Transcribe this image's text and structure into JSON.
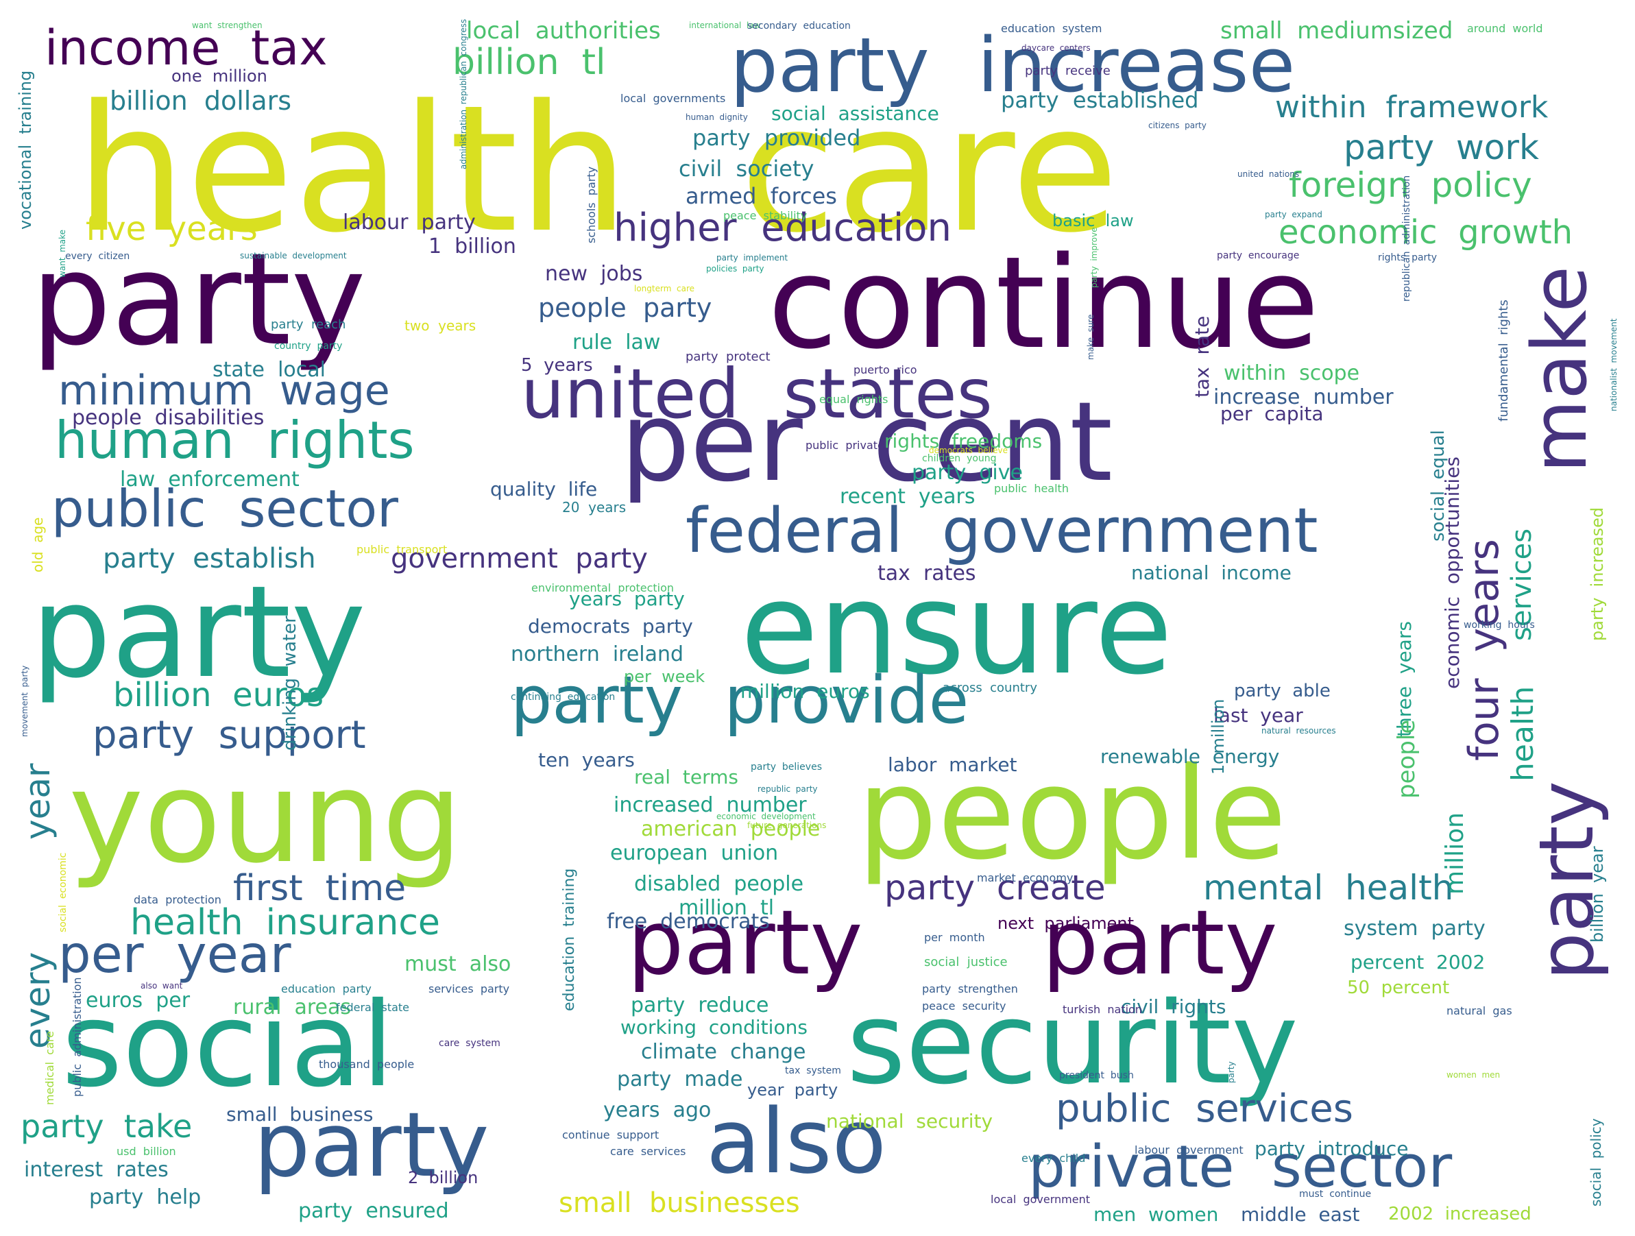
{
  "palette": {
    "c1": "#440154",
    "c2": "#46337e",
    "c3": "#365c8d",
    "c4": "#277f8e",
    "c5": "#1fa187",
    "c6": "#4ac16d",
    "c7": "#a0da39",
    "c8": "#d9e021"
  },
  "words": [
    {
      "text": "health  care",
      "color": "c8"
    },
    {
      "text": "party",
      "color": "c1"
    },
    {
      "text": "continue",
      "color": "c1"
    },
    {
      "text": "party",
      "color": "c5"
    },
    {
      "text": "ensure",
      "color": "c5"
    },
    {
      "text": "young",
      "color": "c7"
    },
    {
      "text": "people",
      "color": "c7"
    },
    {
      "text": "social",
      "color": "c5"
    },
    {
      "text": "security",
      "color": "c5"
    },
    {
      "text": "per  cent",
      "color": "c2"
    },
    {
      "text": "party",
      "color": "c3"
    },
    {
      "text": "also",
      "color": "c3"
    },
    {
      "text": "party",
      "color": "c1"
    },
    {
      "text": "party",
      "color": "c1"
    },
    {
      "text": "united  states",
      "color": "c2"
    },
    {
      "text": "party  increase",
      "color": "c3"
    },
    {
      "text": "make",
      "color": "c2"
    },
    {
      "text": "party",
      "color": "c2"
    },
    {
      "text": "party  provide",
      "color": "c4"
    },
    {
      "text": "federal  government",
      "color": "c3"
    },
    {
      "text": "private  sector",
      "color": "c3"
    },
    {
      "text": "income  tax",
      "color": "c1"
    },
    {
      "text": "human  rights",
      "color": "c5"
    },
    {
      "text": "public  sector",
      "color": "c3"
    },
    {
      "text": "minimum  wage",
      "color": "c3"
    },
    {
      "text": "per  year",
      "color": "c3"
    },
    {
      "text": "billion  tl",
      "color": "c6"
    },
    {
      "text": "higher  education",
      "color": "c2"
    },
    {
      "text": "four  years",
      "color": "c2"
    },
    {
      "text": "public  services",
      "color": "c3"
    },
    {
      "text": "party  support",
      "color": "c3"
    },
    {
      "text": "first  time",
      "color": "c3"
    },
    {
      "text": "health  insurance",
      "color": "c5"
    },
    {
      "text": "party  create",
      "color": "c2"
    },
    {
      "text": "mental  health",
      "color": "c4"
    },
    {
      "text": "billion  euros",
      "color": "c5"
    },
    {
      "text": "party  work",
      "color": "c4"
    },
    {
      "text": "foreign  policy",
      "color": "c6"
    },
    {
      "text": "economic  growth",
      "color": "c6"
    },
    {
      "text": "within  framework",
      "color": "c4"
    },
    {
      "text": "five  years",
      "color": "c8"
    },
    {
      "text": "party  take",
      "color": "c5"
    },
    {
      "text": "small  businesses",
      "color": "c8"
    },
    {
      "text": "party  establish",
      "color": "c4"
    },
    {
      "text": "government  party",
      "color": "c2"
    },
    {
      "text": "billion  dollars",
      "color": "c4"
    },
    {
      "text": "people  party",
      "color": "c3"
    },
    {
      "text": "local  authorities",
      "color": "c6"
    },
    {
      "text": "small  mediumsized",
      "color": "c6"
    },
    {
      "text": "party  established",
      "color": "c4"
    },
    {
      "text": "party  provided",
      "color": "c4"
    },
    {
      "text": "civil  society",
      "color": "c4"
    },
    {
      "text": "armed  forces",
      "color": "c3"
    },
    {
      "text": "labour  party",
      "color": "c2"
    },
    {
      "text": "1  billion",
      "color": "c2"
    },
    {
      "text": "new  jobs",
      "color": "c2"
    },
    {
      "text": "rule  law",
      "color": "c5"
    },
    {
      "text": "5  years",
      "color": "c2"
    },
    {
      "text": "state  local",
      "color": "c4"
    },
    {
      "text": "people  disabilities",
      "color": "c2"
    },
    {
      "text": "law  enforcement",
      "color": "c5"
    },
    {
      "text": "quality  life",
      "color": "c3"
    },
    {
      "text": "20  years",
      "color": "c4"
    },
    {
      "text": "rights  freedoms",
      "color": "c6"
    },
    {
      "text": "party  give",
      "color": "c5"
    },
    {
      "text": "recent  years",
      "color": "c5"
    },
    {
      "text": "within  scope",
      "color": "c6"
    },
    {
      "text": "increase  number",
      "color": "c3"
    },
    {
      "text": "per  capita",
      "color": "c2"
    },
    {
      "text": "tax  rates",
      "color": "c2"
    },
    {
      "text": "national  income",
      "color": "c4"
    },
    {
      "text": "years  party",
      "color": "c5"
    },
    {
      "text": "democrats  party",
      "color": "c3"
    },
    {
      "text": "northern  ireland",
      "color": "c4"
    },
    {
      "text": "per  week",
      "color": "c6"
    },
    {
      "text": "million  euros",
      "color": "c5"
    },
    {
      "text": "across  country",
      "color": "c4"
    },
    {
      "text": "party  able",
      "color": "c3"
    },
    {
      "text": "last  year",
      "color": "c2"
    },
    {
      "text": "three  years",
      "color": "c5"
    },
    {
      "text": "ten  years",
      "color": "c3"
    },
    {
      "text": "real  terms",
      "color": "c6"
    },
    {
      "text": "labor  market",
      "color": "c3"
    },
    {
      "text": "renewable  energy",
      "color": "c4"
    },
    {
      "text": "increased  number",
      "color": "c5"
    },
    {
      "text": "american  people",
      "color": "c7"
    },
    {
      "text": "european  union",
      "color": "c5"
    },
    {
      "text": "disabled  people",
      "color": "c5"
    },
    {
      "text": "million  tl",
      "color": "c5"
    },
    {
      "text": "free  democrats",
      "color": "c3"
    },
    {
      "text": "next  parliament",
      "color": "c1"
    },
    {
      "text": "system  party",
      "color": "c4"
    },
    {
      "text": "percent  2002",
      "color": "c5"
    },
    {
      "text": "must  also",
      "color": "c6"
    },
    {
      "text": "euros  per",
      "color": "c5"
    },
    {
      "text": "rural  areas",
      "color": "c6"
    },
    {
      "text": "party  reduce",
      "color": "c5"
    },
    {
      "text": "working  conditions",
      "color": "c5"
    },
    {
      "text": "climate  change",
      "color": "c4"
    },
    {
      "text": "civil  rights",
      "color": "c4"
    },
    {
      "text": "party  made",
      "color": "c4"
    },
    {
      "text": "year  party",
      "color": "c3"
    },
    {
      "text": "years  ago",
      "color": "c4"
    },
    {
      "text": "small  business",
      "color": "c3"
    },
    {
      "text": "national  security",
      "color": "c7"
    },
    {
      "text": "party  introduce",
      "color": "c4"
    },
    {
      "text": "interest  rates",
      "color": "c4"
    },
    {
      "text": "2  billion",
      "color": "c2"
    },
    {
      "text": "party  help",
      "color": "c4"
    },
    {
      "text": "party  ensured",
      "color": "c5"
    },
    {
      "text": "men  women",
      "color": "c5"
    },
    {
      "text": "middle  east",
      "color": "c3"
    },
    {
      "text": "2002  increased",
      "color": "c7"
    },
    {
      "text": "50  percent",
      "color": "c7"
    },
    {
      "text": "year",
      "color": "c4"
    },
    {
      "text": "every",
      "color": "c4"
    },
    {
      "text": "million",
      "color": "c5"
    },
    {
      "text": "people",
      "color": "c6"
    },
    {
      "text": "health",
      "color": "c5"
    },
    {
      "text": "services",
      "color": "c5"
    },
    {
      "text": "social  equal",
      "color": "c4"
    },
    {
      "text": "party  increased",
      "color": "c7"
    },
    {
      "text": "billion  year",
      "color": "c4"
    },
    {
      "text": "1  million",
      "color": "c4"
    },
    {
      "text": "economic  opportunities",
      "color": "c2"
    },
    {
      "text": "fundamental  rights",
      "color": "c3"
    },
    {
      "text": "tax  rate",
      "color": "c2"
    },
    {
      "text": "drinking  water",
      "color": "c4"
    },
    {
      "text": "vocational  training",
      "color": "c4"
    },
    {
      "text": "social  policy",
      "color": "c4"
    },
    {
      "text": "old  age",
      "color": "c8"
    },
    {
      "text": "two  years",
      "color": "c8"
    },
    {
      "text": "social  assistance",
      "color": "c5"
    },
    {
      "text": "one  million",
      "color": "c2"
    },
    {
      "text": "local  governments",
      "color": "c3"
    },
    {
      "text": "education  system",
      "color": "c3"
    },
    {
      "text": "around  world",
      "color": "c6"
    },
    {
      "text": "party  receive",
      "color": "c2"
    },
    {
      "text": "basic  law",
      "color": "c5"
    },
    {
      "text": "party  reach",
      "color": "c4"
    },
    {
      "text": "party  protect",
      "color": "c2"
    },
    {
      "text": "puerto  rico",
      "color": "c2"
    },
    {
      "text": "equal  rights",
      "color": "c6"
    },
    {
      "text": "public  private",
      "color": "c2"
    },
    {
      "text": "children  young",
      "color": "c6"
    },
    {
      "text": "public  health",
      "color": "c6"
    },
    {
      "text": "working  hours",
      "color": "c3"
    },
    {
      "text": "party  believes",
      "color": "c4"
    },
    {
      "text": "republic  party",
      "color": "c4"
    },
    {
      "text": "natural  resources",
      "color": "c4"
    },
    {
      "text": "future  generations",
      "color": "c7"
    },
    {
      "text": "market  economy",
      "color": "c3"
    },
    {
      "text": "per  month",
      "color": "c3"
    },
    {
      "text": "social  justice",
      "color": "c6"
    },
    {
      "text": "party  strengthen",
      "color": "c3"
    },
    {
      "text": "peace  security",
      "color": "c3"
    },
    {
      "text": "natural  gas",
      "color": "c3"
    },
    {
      "text": "data  protection",
      "color": "c3"
    },
    {
      "text": "education  party",
      "color": "c4"
    },
    {
      "text": "services  party",
      "color": "c3"
    },
    {
      "text": "federal  state",
      "color": "c4"
    },
    {
      "text": "turkish  nation",
      "color": "c2"
    },
    {
      "text": "care  system",
      "color": "c2"
    },
    {
      "text": "tax  system",
      "color": "c3"
    },
    {
      "text": "president  bush",
      "color": "c3"
    },
    {
      "text": "thousand  people",
      "color": "c3"
    },
    {
      "text": "continue  support",
      "color": "c3"
    },
    {
      "text": "care  services",
      "color": "c3"
    },
    {
      "text": "labour  government",
      "color": "c3"
    },
    {
      "text": "every  child",
      "color": "c4"
    },
    {
      "text": "local  government",
      "color": "c2"
    },
    {
      "text": "must  continue",
      "color": "c3"
    },
    {
      "text": "usd  billion",
      "color": "c6"
    },
    {
      "text": "also  want",
      "color": "c2"
    },
    {
      "text": "education  training",
      "color": "c4"
    },
    {
      "text": "public  administration",
      "color": "c3"
    },
    {
      "text": "medical  care",
      "color": "c7"
    },
    {
      "text": "social  economic",
      "color": "c8"
    },
    {
      "text": "women  men",
      "color": "c7"
    },
    {
      "text": "want  strengthen",
      "color": "c6"
    },
    {
      "text": "international  law",
      "color": "c6"
    },
    {
      "text": "secondary  education",
      "color": "c3"
    },
    {
      "text": "daycare  centers",
      "color": "c2"
    },
    {
      "text": "human  dignity",
      "color": "c3"
    },
    {
      "text": "citizens  party",
      "color": "c3"
    },
    {
      "text": "united  nations",
      "color": "c3"
    },
    {
      "text": "party  expand",
      "color": "c4"
    },
    {
      "text": "peace  stability",
      "color": "c6"
    },
    {
      "text": "party  implement",
      "color": "c4"
    },
    {
      "text": "policies  party",
      "color": "c5"
    },
    {
      "text": "longterm  care",
      "color": "c8"
    },
    {
      "text": "party  encourage",
      "color": "c2"
    },
    {
      "text": "rights  party",
      "color": "c3"
    },
    {
      "text": "every  citizen",
      "color": "c3"
    },
    {
      "text": "sustainable  development",
      "color": "c4"
    },
    {
      "text": "country  party",
      "color": "c5"
    },
    {
      "text": "democrats  believe",
      "color": "c8"
    },
    {
      "text": "public  transport",
      "color": "c8"
    },
    {
      "text": "environmental  protection",
      "color": "c6"
    },
    {
      "text": "continuing  education",
      "color": "c4"
    },
    {
      "text": "economic  development",
      "color": "c6"
    },
    {
      "text": "schools  party",
      "color": "c3"
    },
    {
      "text": "administration  republican  congress",
      "color": "c4"
    },
    {
      "text": "want  make",
      "color": "c5"
    },
    {
      "text": "make  sure",
      "color": "c3"
    },
    {
      "text": "party  improve",
      "color": "c6"
    },
    {
      "text": "republican  administration",
      "color": "c3"
    },
    {
      "text": "nationalist  movement",
      "color": "c4"
    },
    {
      "text": "movement  party",
      "color": "c3"
    },
    {
      "text": "party",
      "color": "c4"
    }
  ]
}
